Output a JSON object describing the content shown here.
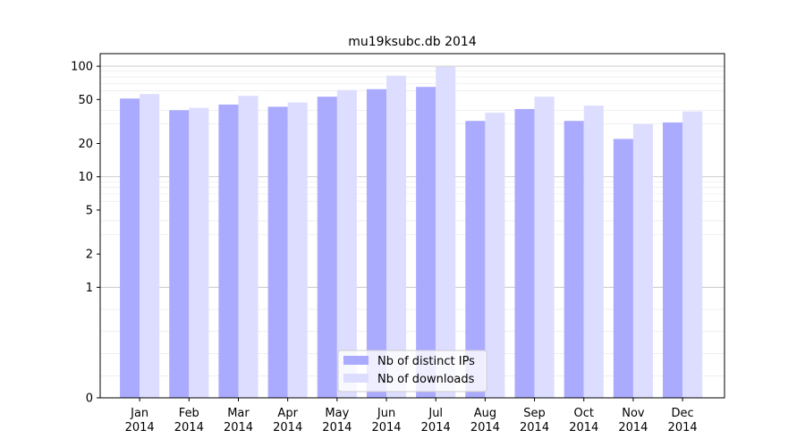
{
  "chart_data": {
    "type": "bar",
    "title": "mu19ksubc.db 2014",
    "xlabel": "",
    "ylabel": "",
    "yscale": "symlog",
    "ylim": [
      0,
      130
    ],
    "yticks": [
      0,
      1,
      2,
      5,
      10,
      20,
      50,
      100
    ],
    "ytick_labels": [
      "0",
      "1",
      "2",
      "5",
      "10",
      "20",
      "50",
      "100"
    ],
    "grid": true,
    "legend_position": "bottom-center",
    "categories": [
      {
        "month": "Jan",
        "year": "2014"
      },
      {
        "month": "Feb",
        "year": "2014"
      },
      {
        "month": "Mar",
        "year": "2014"
      },
      {
        "month": "Apr",
        "year": "2014"
      },
      {
        "month": "May",
        "year": "2014"
      },
      {
        "month": "Jun",
        "year": "2014"
      },
      {
        "month": "Jul",
        "year": "2014"
      },
      {
        "month": "Aug",
        "year": "2014"
      },
      {
        "month": "Sep",
        "year": "2014"
      },
      {
        "month": "Oct",
        "year": "2014"
      },
      {
        "month": "Nov",
        "year": "2014"
      },
      {
        "month": "Dec",
        "year": "2014"
      }
    ],
    "series": [
      {
        "name": "Nb of distinct IPs",
        "color": "#aaaaff",
        "values": [
          51,
          40,
          45,
          43,
          53,
          62,
          65,
          32,
          41,
          32,
          22,
          31
        ]
      },
      {
        "name": "Nb of downloads",
        "color": "#ddddff",
        "values": [
          56,
          42,
          54,
          47,
          61,
          82,
          99,
          38,
          53,
          44,
          30,
          39
        ]
      }
    ]
  }
}
